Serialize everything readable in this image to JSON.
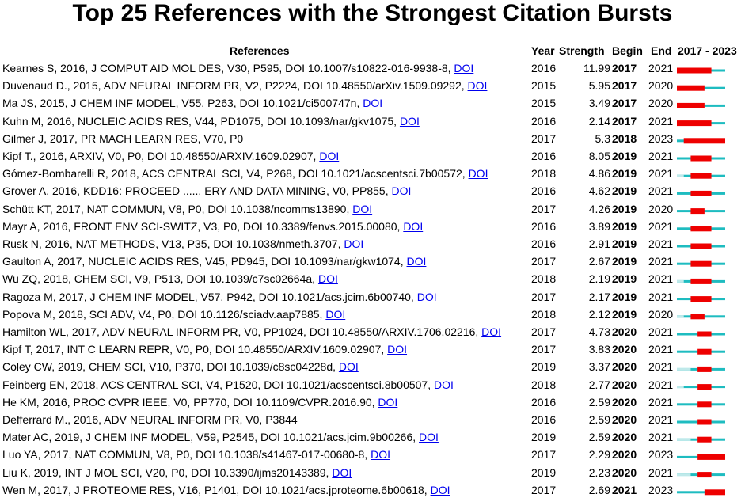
{
  "title": "Top 25 References with the Strongest Citation Bursts",
  "table": {
    "headers": {
      "reference": "References",
      "year": "Year",
      "strength": "Strength",
      "begin": "Begin",
      "end": "End",
      "timeline": "2017 - 2023"
    },
    "timeline": {
      "start": 2017,
      "end": 2023
    },
    "rows": [
      {
        "reference": "Kearnes S, 2016, J COMPUT AID MOL DES, V30, P595, DOI 10.1007/s10822-016-9938-8,",
        "link": "DOI",
        "year": 2016,
        "strength": 11.99,
        "begin": 2017,
        "end": 2021
      },
      {
        "reference": "Duvenaud D., 2015, ADV NEURAL INFORM PR, V2, P2224, DOI 10.48550/arXiv.1509.09292,",
        "link": "DOI",
        "year": 2015,
        "strength": 5.95,
        "begin": 2017,
        "end": 2020
      },
      {
        "reference": "Ma JS, 2015, J CHEM INF MODEL, V55, P263, DOI 10.1021/ci500747n,",
        "link": "DOI",
        "year": 2015,
        "strength": 3.49,
        "begin": 2017,
        "end": 2020
      },
      {
        "reference": "Kuhn M, 2016, NUCLEIC ACIDS RES, V44, PD1075, DOI 10.1093/nar/gkv1075,",
        "link": "DOI",
        "year": 2016,
        "strength": 2.14,
        "begin": 2017,
        "end": 2021
      },
      {
        "reference": "Gilmer J, 2017, PR MACH LEARN RES, V70, P0",
        "year": 2017,
        "strength": 5.3,
        "begin": 2018,
        "end": 2023
      },
      {
        "reference": "Kipf T., 2016, ARXIV, V0, P0, DOI 10.48550/ARXIV.1609.02907,",
        "link": "DOI",
        "year": 2016,
        "strength": 8.05,
        "begin": 2019,
        "end": 2021
      },
      {
        "reference": "Gómez-Bombarelli R, 2018, ACS CENTRAL SCI, V4, P268, DOI 10.1021/acscentsci.7b00572,",
        "link": "DOI",
        "year": 2018,
        "strength": 4.86,
        "begin": 2019,
        "end": 2021
      },
      {
        "reference": "Grover A, 2016, KDD16: PROCEED ...... ERY AND DATA MINING, V0, PP855,",
        "link": "DOI",
        "year": 2016,
        "strength": 4.62,
        "begin": 2019,
        "end": 2021
      },
      {
        "reference": "Schütt KT, 2017, NAT COMMUN, V8, P0, DOI 10.1038/ncomms13890,",
        "link": "DOI",
        "year": 2017,
        "strength": 4.26,
        "begin": 2019,
        "end": 2020
      },
      {
        "reference": "Mayr A, 2016, FRONT ENV SCI-SWITZ, V3, P0, DOI 10.3389/fenvs.2015.00080,",
        "link": "DOI",
        "year": 2016,
        "strength": 3.89,
        "begin": 2019,
        "end": 2021
      },
      {
        "reference": "Rusk N, 2016, NAT METHODS, V13, P35, DOI 10.1038/nmeth.3707,",
        "link": "DOI",
        "year": 2016,
        "strength": 2.91,
        "begin": 2019,
        "end": 2021
      },
      {
        "reference": "Gaulton A, 2017, NUCLEIC ACIDS RES, V45, PD945, DOI 10.1093/nar/gkw1074,",
        "link": "DOI",
        "year": 2017,
        "strength": 2.67,
        "begin": 2019,
        "end": 2021
      },
      {
        "reference": "Wu ZQ, 2018, CHEM SCI, V9, P513, DOI 10.1039/c7sc02664a,",
        "link": "DOI",
        "year": 2018,
        "strength": 2.19,
        "begin": 2019,
        "end": 2021
      },
      {
        "reference": "Ragoza M, 2017, J CHEM INF MODEL, V57, P942, DOI 10.1021/acs.jcim.6b00740,",
        "link": "DOI",
        "year": 2017,
        "strength": 2.17,
        "begin": 2019,
        "end": 2021
      },
      {
        "reference": "Popova M, 2018, SCI ADV, V4, P0, DOI 10.1126/sciadv.aap7885,",
        "link": "DOI",
        "year": 2018,
        "strength": 2.12,
        "begin": 2019,
        "end": 2020
      },
      {
        "reference": "Hamilton WL, 2017, ADV NEURAL INFORM PR, V0, PP1024, DOI 10.48550/ARXIV.1706.02216,",
        "link": "DOI",
        "year": 2017,
        "strength": 4.73,
        "begin": 2020,
        "end": 2021
      },
      {
        "reference": "Kipf T, 2017, INT C LEARN REPR, V0, P0, DOI 10.48550/ARXIV.1609.02907,",
        "link": "DOI",
        "year": 2017,
        "strength": 3.83,
        "begin": 2020,
        "end": 2021
      },
      {
        "reference": "Coley CW, 2019, CHEM SCI, V10, P370, DOI 10.1039/c8sc04228d,",
        "link": "DOI",
        "year": 2019,
        "strength": 3.37,
        "begin": 2020,
        "end": 2021
      },
      {
        "reference": "Feinberg EN, 2018, ACS CENTRAL SCI, V4, P1520, DOI 10.1021/acscentsci.8b00507,",
        "link": "DOI",
        "year": 2018,
        "strength": 2.77,
        "begin": 2020,
        "end": 2021
      },
      {
        "reference": "He KM, 2016, PROC CVPR IEEE, V0, PP770, DOI 10.1109/CVPR.2016.90,",
        "link": "DOI",
        "year": 2016,
        "strength": 2.59,
        "begin": 2020,
        "end": 2021
      },
      {
        "reference": "Defferrard M., 2016, ADV NEURAL INFORM PR, V0, P3844",
        "year": 2016,
        "strength": 2.59,
        "begin": 2020,
        "end": 2021
      },
      {
        "reference": "Mater AC, 2019, J CHEM INF MODEL, V59, P2545, DOI 10.1021/acs.jcim.9b00266,",
        "link": "DOI",
        "year": 2019,
        "strength": 2.59,
        "begin": 2020,
        "end": 2021
      },
      {
        "reference": "Luo YA, 2017, NAT COMMUN, V8, P0, DOI 10.1038/s41467-017-00680-8,",
        "link": "DOI",
        "year": 2017,
        "strength": 2.29,
        "begin": 2020,
        "end": 2023
      },
      {
        "reference": "Liu K, 2019, INT J MOL SCI, V20, P0, DOI 10.3390/ijms20143389,",
        "link": "DOI",
        "year": 2019,
        "strength": 2.23,
        "begin": 2020,
        "end": 2021
      },
      {
        "reference": "Wen M, 2017, J PROTEOME RES, V16, P1401, DOI 10.1021/acs.jproteome.6b00618,",
        "link": "DOI",
        "year": 2017,
        "strength": 2.69,
        "begin": 2021,
        "end": 2023
      }
    ]
  }
}
